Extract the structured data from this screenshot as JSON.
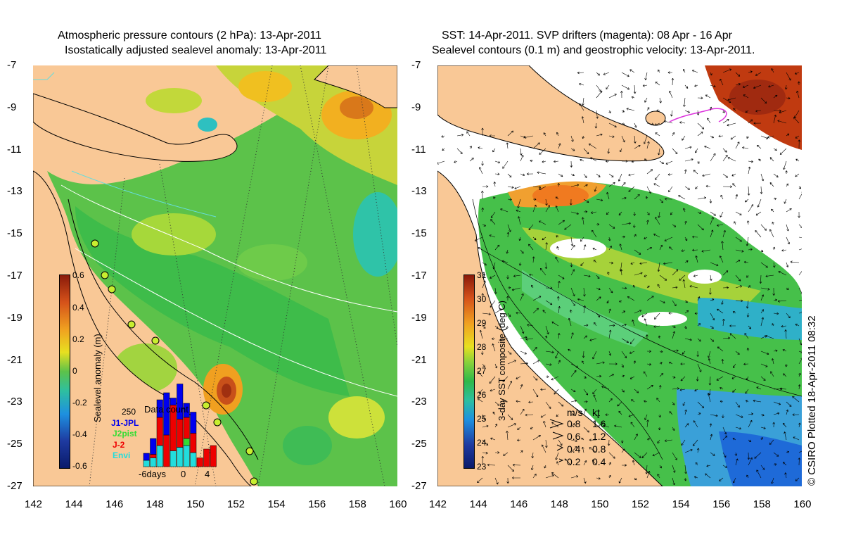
{
  "left": {
    "title1": "Atmospheric pressure contours (2 hPa): 13-Apr-2011",
    "title2": "Isostatically adjusted sealevel anomaly: 13-Apr-2011",
    "colorbar": {
      "label": "Sealevel anomaly (m)",
      "ticks": [
        "0.6",
        "0.4",
        "0.2",
        "0",
        "-0.2",
        "-0.4",
        "-0.6"
      ]
    },
    "inset": {
      "title": "Data count",
      "ymax": "250",
      "missions": [
        {
          "name": "J1-JPL",
          "color": "#0000ee"
        },
        {
          "name": "J2pist",
          "color": "#33dd33"
        },
        {
          "name": "J-2",
          "color": "#ee0000"
        },
        {
          "name": "Envi",
          "color": "#22dddd"
        }
      ],
      "xticks": [
        "-6days",
        "0",
        "4"
      ],
      "bars": [
        {
          "day": -6,
          "blue": 20,
          "green": 0,
          "red": 0,
          "cyan": 18
        },
        {
          "day": -5,
          "blue": 45,
          "green": 0,
          "red": 10,
          "cyan": 25
        },
        {
          "day": -4,
          "blue": 50,
          "green": 0,
          "red": 80,
          "cyan": 60
        },
        {
          "day": -3,
          "blue": 120,
          "green": 0,
          "red": 90,
          "cyan": 0
        },
        {
          "day": -2,
          "blue": 20,
          "green": 0,
          "red": 130,
          "cyan": 45
        },
        {
          "day": -1,
          "blue": 100,
          "green": 0,
          "red": 80,
          "cyan": 55
        },
        {
          "day": 0,
          "blue": 40,
          "green": 20,
          "red": 60,
          "cyan": 60
        },
        {
          "day": 1,
          "blue": 60,
          "green": 0,
          "red": 55,
          "cyan": 40
        },
        {
          "day": 2,
          "blue": 0,
          "green": 0,
          "red": 25,
          "cyan": 0
        },
        {
          "day": 3,
          "blue": 0,
          "green": 0,
          "red": 50,
          "cyan": 0
        },
        {
          "day": 4,
          "blue": 0,
          "green": 0,
          "red": 60,
          "cyan": 0
        }
      ]
    }
  },
  "right": {
    "title1": "SST: 14-Apr-2011. SVP drifters (magenta): 08 Apr - 16 Apr",
    "title2": "Sealevel contours (0.1 m) and geostrophic velocity: 13-Apr-2011.",
    "colorbar": {
      "label": "3-day SST composite (deg C)",
      "ticks": [
        "31",
        "30",
        "29",
        "28",
        "27",
        "26",
        "25",
        "24",
        "23"
      ]
    },
    "legend": {
      "header_ms": "m/s",
      "header_kt": "kt",
      "rows": [
        {
          "ms": "0.8",
          "kt": "1.6"
        },
        {
          "ms": "0.6",
          "kt": "1.2"
        },
        {
          "ms": "0.4",
          "kt": "0.8"
        },
        {
          "ms": "0.2",
          "kt": "0.4"
        }
      ]
    }
  },
  "axes": {
    "lat_ticks": [
      "-7",
      "-9",
      "-11",
      "-13",
      "-15",
      "-17",
      "-19",
      "-21",
      "-23",
      "-25",
      "-27"
    ],
    "lon_ticks": [
      "142",
      "144",
      "146",
      "148",
      "150",
      "152",
      "154",
      "156",
      "158",
      "160"
    ]
  },
  "copyright": "© CSIRO Plotted 18-Apr-2011 08:32",
  "colors": {
    "land": "#f9c896",
    "sla_low": "#2db84a",
    "sla_mid": "#9ad43a",
    "sla_high": "#f5a623",
    "sst_warm": "#e0681e",
    "sst_cool": "#1e64e0",
    "cloud": "#ffffff"
  }
}
